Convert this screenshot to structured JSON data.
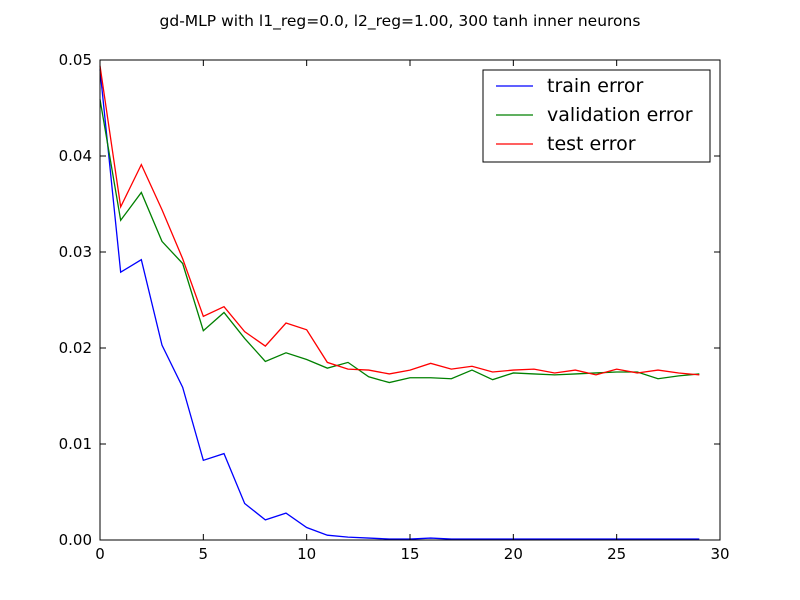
{
  "chart_data": {
    "type": "line",
    "title": "gd-MLP with l1_reg=0.0, l2_reg=1.00, 300 tanh inner neurons",
    "xlabel": "",
    "ylabel": "",
    "xlim": [
      0,
      30
    ],
    "ylim": [
      0,
      0.05
    ],
    "xticks": [
      "0",
      "5",
      "10",
      "15",
      "20",
      "25",
      "30"
    ],
    "yticks": [
      "0.00",
      "0.01",
      "0.02",
      "0.03",
      "0.04",
      "0.05"
    ],
    "grid": false,
    "legend_position": "top-right",
    "x": [
      0,
      1,
      2,
      3,
      4,
      5,
      6,
      7,
      8,
      9,
      10,
      11,
      12,
      13,
      14,
      15,
      16,
      17,
      18,
      19,
      20,
      21,
      22,
      23,
      24,
      25,
      26,
      27,
      28,
      29
    ],
    "series": [
      {
        "name": "train error",
        "color": "#0000ff",
        "values": [
          0.049,
          0.0279,
          0.0292,
          0.0203,
          0.0159,
          0.0083,
          0.009,
          0.0038,
          0.0021,
          0.0028,
          0.0013,
          0.0005,
          0.0003,
          0.0002,
          0.0001,
          0.0001,
          0.0002,
          0.0001,
          0.0001,
          0.0001,
          0.0001,
          0.0001,
          0.0001,
          0.0001,
          0.0001,
          0.0001,
          0.0001,
          0.0001,
          0.0001,
          0.0001
        ]
      },
      {
        "name": "validation error",
        "color": "#008000",
        "values": [
          0.0459,
          0.0333,
          0.0362,
          0.0311,
          0.0288,
          0.0218,
          0.0237,
          0.021,
          0.0186,
          0.0195,
          0.0188,
          0.0179,
          0.0185,
          0.017,
          0.0164,
          0.0169,
          0.0169,
          0.0168,
          0.0177,
          0.0167,
          0.0174,
          0.0173,
          0.0172,
          0.0173,
          0.0174,
          0.0175,
          0.0175,
          0.0168,
          0.0171,
          0.0173
        ]
      },
      {
        "name": "test error",
        "color": "#ff0000",
        "values": [
          0.0494,
          0.0347,
          0.0391,
          0.0344,
          0.0293,
          0.0233,
          0.0243,
          0.0217,
          0.0202,
          0.0226,
          0.0219,
          0.0185,
          0.0178,
          0.0177,
          0.0173,
          0.0177,
          0.0184,
          0.0178,
          0.0181,
          0.0175,
          0.0177,
          0.0178,
          0.0174,
          0.0177,
          0.0172,
          0.0178,
          0.0174,
          0.0177,
          0.0174,
          0.0172
        ]
      }
    ]
  }
}
